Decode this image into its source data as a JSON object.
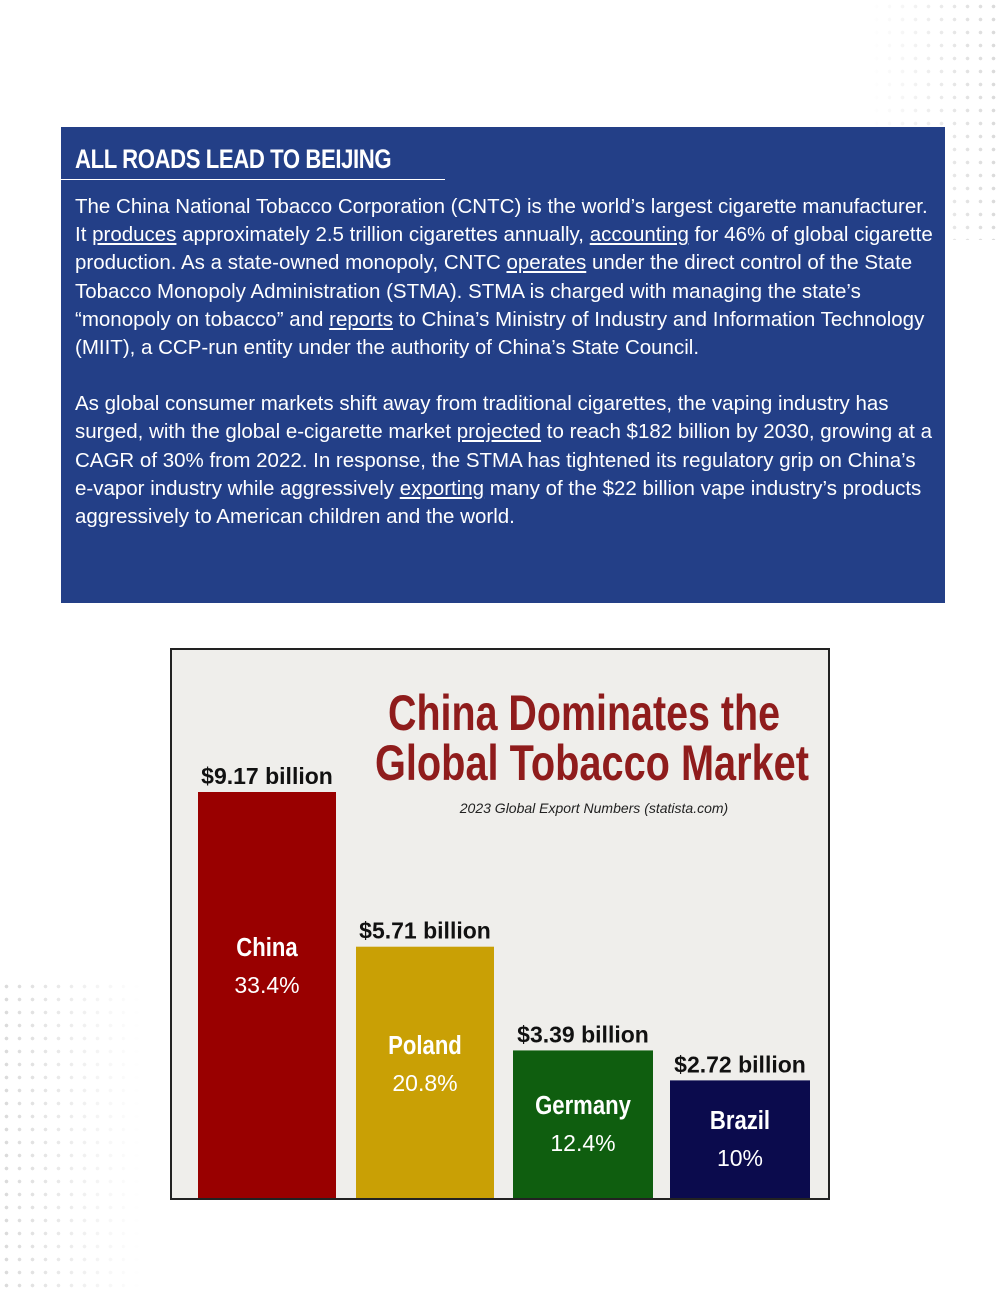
{
  "panel": {
    "title": "ALL ROADS LEAD TO BEIJING",
    "p1": {
      "s1": "The China National Tobacco Corporation (CNTC) is the world’s largest cigarette manufacturer. It ",
      "link_produces": "produces",
      "s2": " approximately 2.5 trillion cigarettes annually, ",
      "link_accounting": "accounting",
      "s3": " for 46% of global cigarette production. As a state-owned monopoly, CNTC ",
      "link_operates": "operates",
      "s4": " under the direct control of the State Tobacco Monopoly Administration (STMA). STMA is charged with managing the state’s “monopoly on tobacco” and ",
      "link_reports": "reports",
      "s5": " to China’s Ministry of Industry and Information Technology (MIIT), a CCP-run entity under the authority of China’s State Council."
    },
    "p2": {
      "s1": "As global consumer markets shift away from traditional cigarettes, the vaping industry has surged, with the global e-cigarette market ",
      "link_projected": "projected",
      "s2": " to reach $182 billion by 2030, growing at a CAGR of 30% from 2022. In response, the STMA has tightened its regulatory grip on China’s e-vapor industry while aggressively ",
      "link_exporting": "exporting",
      "s3": " many of the $22 billion vape industry’s products aggressively to American children and the world."
    }
  },
  "chart_data": {
    "type": "bar",
    "title_line1": "China Dominates the",
    "title_line2": "Global Tobacco Market",
    "subtitle": "2023 Global Export Numbers (statista.com)",
    "ylim": [
      0,
      9.17
    ],
    "unit": "billion",
    "categories": [
      "China",
      "Poland",
      "Germany",
      "Brazil"
    ],
    "values": [
      9.17,
      5.71,
      3.39,
      2.72
    ],
    "value_labels": [
      "$9.17 billion",
      "$5.71 billion",
      "$3.39 billion",
      "$2.72 billion"
    ],
    "shares": [
      "33.4%",
      "20.8%",
      "12.4%",
      "10%"
    ],
    "colors": [
      "#990000",
      "#c9a005",
      "#0f5e0f",
      "#0b0b4d"
    ],
    "title_color": "#8f1c1c"
  }
}
